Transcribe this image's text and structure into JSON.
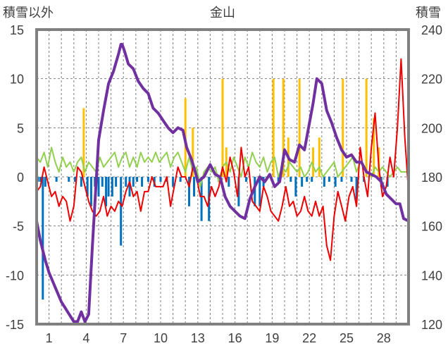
{
  "chart_data": {
    "type": "line",
    "title": "金山",
    "ylabel": "積雪以外",
    "y2label": "積雪",
    "ylim": [
      -15,
      15
    ],
    "y2lim": [
      120,
      240
    ],
    "yticks": [
      "15",
      "10",
      "5",
      "0",
      "-5",
      "-10",
      "-15"
    ],
    "y2ticks": [
      "240",
      "220",
      "200",
      "180",
      "160",
      "140",
      "120"
    ],
    "xlim": [
      0,
      30
    ],
    "xticks": [
      "1",
      "4",
      "7",
      "10",
      "13",
      "16",
      "19",
      "22",
      "25",
      "28"
    ],
    "xtick_values": [
      1,
      4,
      7,
      10,
      13,
      16,
      19,
      22,
      25,
      28
    ],
    "grid": true,
    "legend": "none",
    "colors": {
      "snow_depth": "#7030a0",
      "temperature": "#ee0000",
      "wind": "#92d050",
      "snowfall": "#ffc000",
      "change": "#0070c0",
      "frame": "#808080",
      "grid": "#808080"
    },
    "series": [
      {
        "key": "snow_depth",
        "axis": "y2",
        "x": [
          0,
          0.3,
          0.7,
          1,
          1.5,
          2,
          2.5,
          3,
          3.3,
          3.6,
          3.9,
          4.2,
          4.5,
          5,
          5.4,
          5.8,
          6.2,
          6.6,
          6.8,
          6.9,
          7.1,
          7.4,
          7.8,
          8.2,
          8.6,
          9,
          9.4,
          9.8,
          10.2,
          10.6,
          11,
          11.4,
          11.8,
          12.1,
          12.5,
          12.8,
          13,
          13.5,
          14,
          14.4,
          14.8,
          15.2,
          15.6,
          16,
          16.4,
          16.8,
          17.2,
          17.6,
          18,
          18.4,
          18.8,
          19.2,
          19.6,
          20,
          20.4,
          20.8,
          21.2,
          21.6,
          21.9,
          22.3,
          22.6,
          23,
          23.4,
          23.8,
          24.2,
          24.6,
          25,
          25.4,
          25.8,
          26.2,
          26.6,
          27,
          27.4,
          27.8,
          28.2,
          28.6,
          29,
          29.3,
          29.6,
          30
        ],
        "values": [
          162,
          154,
          146,
          141,
          135,
          129,
          125,
          121,
          121,
          125,
          121,
          124,
          152,
          195,
          207,
          218,
          223,
          230,
          234,
          234,
          231,
          226,
          224,
          219,
          216,
          214,
          208,
          206,
          203,
          200,
          198,
          200,
          199,
          192,
          187,
          182,
          178,
          180,
          185,
          181,
          180,
          172,
          168,
          166,
          164,
          163,
          171,
          176,
          180,
          178,
          181,
          176,
          178,
          191,
          187,
          186,
          193,
          191,
          199,
          210,
          220,
          218,
          207,
          202,
          196,
          191,
          188,
          189,
          186,
          186,
          182,
          181,
          180,
          178,
          173,
          171,
          169,
          169,
          163,
          162
        ]
      },
      {
        "key": "temperature",
        "axis": "y",
        "x": [
          0,
          0.3,
          0.6,
          0.9,
          1.2,
          1.5,
          1.8,
          2.1,
          2.4,
          2.7,
          3,
          3.3,
          3.6,
          3.9,
          4.2,
          4.5,
          4.8,
          5.1,
          5.4,
          5.7,
          6,
          6.3,
          6.6,
          6.9,
          7.2,
          7.5,
          7.8,
          8.1,
          8.4,
          8.7,
          9,
          9.3,
          9.6,
          9.9,
          10.2,
          10.5,
          10.8,
          11.1,
          11.4,
          11.7,
          12,
          12.3,
          12.6,
          12.9,
          13.2,
          13.5,
          13.8,
          14.1,
          14.4,
          14.7,
          15,
          15.3,
          15.6,
          15.9,
          16.2,
          16.5,
          16.8,
          17.1,
          17.4,
          17.7,
          18,
          18.3,
          18.6,
          18.9,
          19.2,
          19.5,
          19.8,
          20.1,
          20.4,
          20.7,
          21,
          21.3,
          21.6,
          21.9,
          22.2,
          22.5,
          22.8,
          23.1,
          23.4,
          23.7,
          24,
          24.3,
          24.6,
          24.9,
          25.2,
          25.5,
          25.8,
          26.1,
          26.4,
          26.7,
          27,
          27.3,
          27.6,
          27.9,
          28.2,
          28.5,
          28.8,
          29.1,
          29.4,
          29.7,
          30
        ],
        "values": [
          -1.5,
          -1,
          1,
          -0.5,
          -2,
          -1.5,
          -3,
          -2,
          -2.5,
          -4.5,
          -3,
          1,
          0.5,
          -1,
          -2.5,
          -3.5,
          -4,
          -3.5,
          -2,
          -4,
          -3,
          -3.5,
          -2.5,
          -3,
          -1.5,
          -0.5,
          -2,
          -1.5,
          -3.5,
          -1.5,
          -1.5,
          0,
          -1,
          -1,
          -1,
          0,
          -3,
          -1,
          1,
          0,
          0,
          -1,
          1,
          0,
          -2,
          -2,
          -3,
          -1,
          -2,
          -1,
          1,
          -0.5,
          2,
          0.5,
          -2,
          3,
          0,
          1,
          -2.5,
          -3,
          -3.5,
          -1,
          -2,
          -3.5,
          -4,
          -4.5,
          -3,
          -1,
          -3,
          -2.5,
          -4,
          -3.5,
          -2,
          -3.5,
          -4,
          -2.5,
          -4,
          -3,
          -7,
          -8.5,
          -4,
          -1.5,
          -3,
          -4.5,
          -2,
          -1,
          -3,
          3,
          0,
          -2,
          3,
          6.5,
          1,
          -2,
          -1,
          2,
          0,
          5,
          12,
          4,
          -1.5
        ]
      },
      {
        "key": "wind",
        "axis": "y",
        "x": [
          0,
          0.3,
          0.6,
          0.9,
          1.2,
          1.5,
          1.8,
          2.1,
          2.4,
          2.7,
          3,
          3.3,
          3.6,
          3.9,
          4.2,
          4.5,
          4.8,
          5.1,
          5.4,
          5.7,
          6,
          6.3,
          6.6,
          6.9,
          7.2,
          7.5,
          7.8,
          8.1,
          8.4,
          8.7,
          9,
          9.3,
          9.6,
          9.9,
          10.2,
          10.5,
          10.8,
          11.1,
          11.4,
          11.7,
          12,
          12.3,
          12.6,
          12.9,
          13.2,
          13.5,
          13.8,
          14.1,
          14.4,
          14.7,
          15,
          15.3,
          15.6,
          15.9,
          16.2,
          16.5,
          16.8,
          17.1,
          17.4,
          17.7,
          18,
          18.3,
          18.6,
          18.9,
          19.2,
          19.5,
          19.8,
          20.1,
          20.4,
          20.7,
          21,
          21.3,
          21.6,
          21.9,
          22.2,
          22.5,
          22.8,
          23.1,
          23.4,
          23.7,
          24,
          24.3,
          24.6,
          24.9,
          25.2,
          25.5,
          25.8,
          26.1,
          26.4,
          26.7,
          27,
          27.3,
          27.6,
          27.9,
          28.2,
          28.5,
          28.8,
          29.1,
          29.4,
          29.7,
          30
        ],
        "values": [
          2,
          1.5,
          2.5,
          1,
          3,
          1.5,
          0.5,
          2,
          1,
          1.5,
          0.5,
          1.5,
          2,
          0.5,
          1.5,
          1,
          0.5,
          2,
          1,
          1.5,
          2,
          2.5,
          1,
          2,
          2.5,
          1,
          2,
          1,
          2.5,
          1.5,
          2,
          1.5,
          2.5,
          1.5,
          2,
          2.5,
          1,
          2,
          2.5,
          1.5,
          0.5,
          2,
          0.5,
          1,
          -1,
          0.5,
          1,
          0.5,
          1,
          -0.5,
          1,
          1.5,
          0.5,
          2,
          1,
          0,
          2,
          1,
          2.5,
          1.5,
          1,
          2,
          0.5,
          1.5,
          2,
          0,
          1,
          0.5,
          1.5,
          1,
          0.5,
          1,
          0,
          0.5,
          1.5,
          0.5,
          1,
          0,
          0.5,
          1,
          1.5,
          0,
          0.5,
          1,
          1.5,
          2,
          0.5,
          1.5,
          1,
          0.5,
          0,
          1,
          0.5,
          1,
          0.5,
          0,
          0.5,
          1,
          0.5,
          0.5,
          0.5
        ]
      }
    ],
    "bars": [
      {
        "key": "snowfall",
        "axis": "y",
        "x": [
          3.8,
          12,
          12.6,
          15,
          15.3,
          19.1,
          19.9,
          20.3,
          21.2,
          22.3,
          22.8,
          24.7,
          26.6,
          27.2,
          27.6
        ],
        "values": [
          7,
          8,
          5,
          10,
          3,
          10,
          10,
          4,
          10,
          3,
          4,
          10,
          10,
          6,
          3
        ]
      },
      {
        "key": "change",
        "axis": "y",
        "x": [
          0.1,
          0.3,
          0.5,
          0.7,
          1.6,
          2.6,
          3.1,
          3.6,
          4.1,
          4.4,
          4.7,
          5,
          5.3,
          5.6,
          5.8,
          6.1,
          6.4,
          6.8,
          7.2,
          7.5,
          7.8,
          8.1,
          8.5,
          9,
          9.5,
          10,
          10.5,
          11,
          11.6,
          12.3,
          12.7,
          13.3,
          13.9,
          14.7,
          15.5,
          16.3,
          16.9,
          17.6,
          18,
          18.3,
          19.5,
          20.5,
          20.9,
          21.4,
          21.8,
          22.2,
          23.2,
          23.6,
          24.1,
          24.6,
          25.4,
          25.8,
          26.4,
          27.8,
          28.3
        ],
        "values": [
          -0.5,
          -0.5,
          -12.5,
          -1,
          -0.5,
          -0.5,
          -0.5,
          -1,
          -2,
          -3,
          -1,
          -2,
          -1,
          -3,
          -2,
          -2,
          -1,
          -7,
          -1,
          -2,
          -1,
          -0.5,
          -1,
          -0.5,
          -1,
          -0.5,
          -0.5,
          -1,
          -0.5,
          -3,
          -2,
          -4.5,
          -4.5,
          -0.5,
          -1,
          -3,
          -0.5,
          -3,
          -3,
          -1,
          -0.5,
          -0.5,
          -2,
          -1,
          -0.5,
          -0.5,
          -1,
          -0.5,
          -1,
          -0.5,
          -0.5,
          -2.5,
          -0.5,
          -1,
          -1
        ]
      }
    ]
  }
}
